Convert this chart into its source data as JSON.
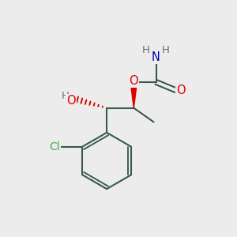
{
  "bg_color": "#ececec",
  "bond_color": "#3a5a4a",
  "bond_width": 1.5,
  "atom_colors": {
    "O": "#dd0000",
    "N": "#0000bb",
    "Cl": "#44aa44",
    "H": "#5a7a6a",
    "C": "#3a5a4a"
  },
  "font_size_atom": 10.5,
  "font_size_H": 9.0
}
